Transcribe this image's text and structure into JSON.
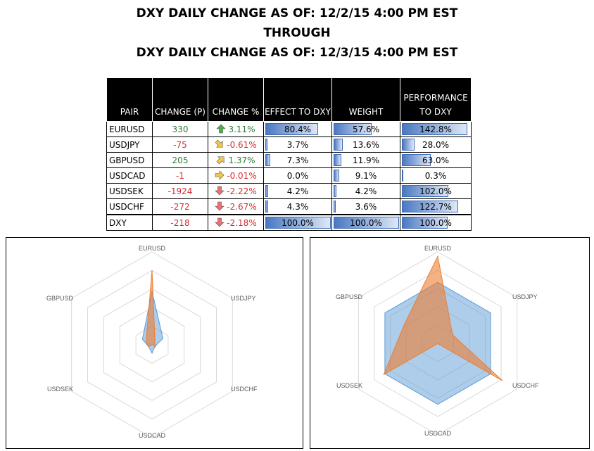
{
  "title": {
    "line1": "DXY DAILY CHANGE AS OF: 12/2/15 4:00 PM EST",
    "line2": "THROUGH",
    "line3": "DXY DAILY CHANGE AS OF: 12/3/15 4:00 PM EST"
  },
  "table": {
    "headers": {
      "pair": "PAIR",
      "change_p": "CHANGE (P)",
      "change_pct": "CHANGE %",
      "effect": "EFFECT TO DXY",
      "weight": "WEIGHT",
      "performance": "PERFORMANCE TO DXY"
    },
    "rows": [
      {
        "pair": "EURUSD",
        "change_p": "330",
        "change_pct": "3.11%",
        "dir": "up",
        "effect": "80.4%",
        "effect_v": 80.4,
        "weight": "57.6%",
        "weight_v": 57.6,
        "performance": "142.8%",
        "performance_v": 142.8
      },
      {
        "pair": "USDJPY",
        "change_p": "-75",
        "change_pct": "-0.61%",
        "dir": "downright",
        "effect": "3.7%",
        "effect_v": 3.7,
        "weight": "13.6%",
        "weight_v": 13.6,
        "performance": "28.0%",
        "performance_v": 28.0
      },
      {
        "pair": "GBPUSD",
        "change_p": "205",
        "change_pct": "1.37%",
        "dir": "upright",
        "effect": "7.3%",
        "effect_v": 7.3,
        "weight": "11.9%",
        "weight_v": 11.9,
        "performance": "63.0%",
        "performance_v": 63.0
      },
      {
        "pair": "USDCAD",
        "change_p": "-1",
        "change_pct": "-0.01%",
        "dir": "right",
        "effect": "0.0%",
        "effect_v": 0.0,
        "weight": "9.1%",
        "weight_v": 9.1,
        "performance": "0.3%",
        "performance_v": 0.3
      },
      {
        "pair": "USDSEK",
        "change_p": "-1924",
        "change_pct": "-2.22%",
        "dir": "down",
        "effect": "4.2%",
        "effect_v": 4.2,
        "weight": "4.2%",
        "weight_v": 4.2,
        "performance": "102.0%",
        "performance_v": 102.0
      },
      {
        "pair": "USDCHF",
        "change_p": "-272",
        "change_pct": "-2.67%",
        "dir": "down",
        "effect": "4.3%",
        "effect_v": 4.3,
        "weight": "3.6%",
        "weight_v": 3.6,
        "performance": "122.7%",
        "performance_v": 122.7
      },
      {
        "pair": "DXY",
        "change_p": "-218",
        "change_pct": "-2.18%",
        "dir": "down",
        "effect": "100.0%",
        "effect_v": 100.0,
        "weight": "100.0%",
        "weight_v": 100.0,
        "performance": "100.0%",
        "performance_v": 100.0
      }
    ]
  },
  "colors": {
    "positive": "#2e7d32",
    "negative": "#d32f2f",
    "arrow_up": "#4caf50",
    "arrow_down": "#e57373",
    "arrow_neutral": "#f6c744",
    "bar": "#4a78c2",
    "series_blue": "#5b9bd5",
    "series_orange": "#ed7d31"
  },
  "chart_data": [
    {
      "type": "radar",
      "axes": [
        "EURUSD",
        "USDJPY",
        "USDCHF",
        "USDCAD",
        "USDSEK",
        "GBPUSD"
      ],
      "rmax": 100,
      "rings": 5,
      "series": [
        {
          "values": [
            57.6,
            13.6,
            3.6,
            9.1,
            4.2,
            11.9
          ],
          "color": "#5b9bd5"
        },
        {
          "values": [
            80.4,
            3.7,
            4.3,
            0.0,
            4.2,
            7.3
          ],
          "color": "#ed7d31"
        }
      ]
    },
    {
      "type": "radar",
      "axes": [
        "EURUSD",
        "USDJPY",
        "USDCHF",
        "USDCAD",
        "USDSEK",
        "GBPUSD"
      ],
      "rmax": 150,
      "rings": 5,
      "series": [
        {
          "values": [
            100,
            100,
            100,
            100,
            100,
            100
          ],
          "color": "#5b9bd5"
        },
        {
          "values": [
            142.8,
            28.0,
            122.7,
            0.3,
            102.0,
            63.0
          ],
          "color": "#ed7d31"
        }
      ]
    }
  ]
}
